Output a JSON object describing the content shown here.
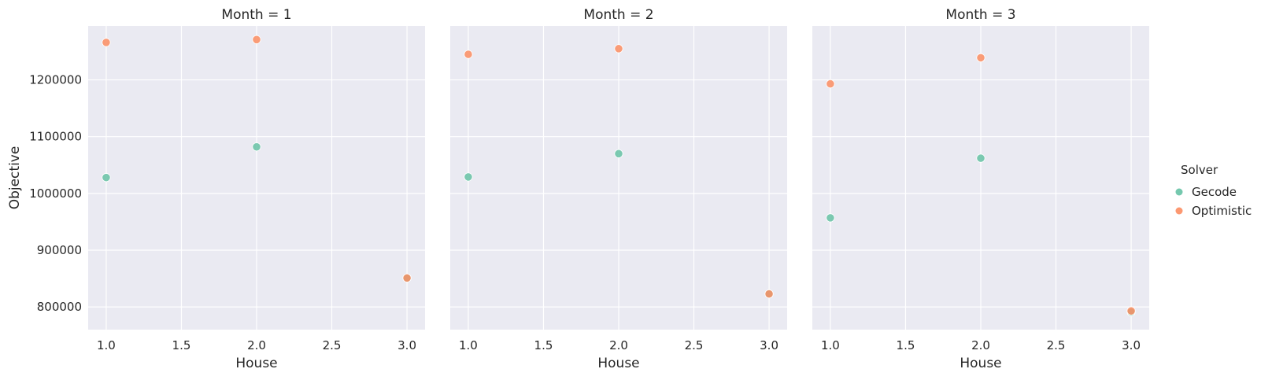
{
  "chart_data": {
    "type": "scatter",
    "facet_variable": "Month",
    "hue_variable": "Solver",
    "xlabel": "House",
    "ylabel": "Objective",
    "xlim": [
      0.88,
      3.12
    ],
    "ylim": [
      760000,
      1295000
    ],
    "xticks": [
      1.0,
      1.5,
      2.0,
      2.5,
      3.0
    ],
    "xtick_labels": [
      "1.0",
      "1.5",
      "2.0",
      "2.5",
      "3.0"
    ],
    "yticks": [
      800000,
      900000,
      1000000,
      1100000,
      1200000
    ],
    "ytick_labels": [
      "800000",
      "900000",
      "1000000",
      "1100000",
      "1200000"
    ],
    "grid": true,
    "legend": {
      "title": "Solver",
      "position": "right",
      "entries": [
        {
          "name": "Gecode",
          "color": "#66c2a5"
        },
        {
          "name": "Optimistic",
          "color": "#fc8d62"
        }
      ]
    },
    "panels": [
      {
        "title": "Month = 1",
        "series": [
          {
            "name": "Gecode",
            "x": [
              1.0,
              2.0,
              3.0
            ],
            "y": [
              1028000,
              1082000,
              851000
            ]
          },
          {
            "name": "Optimistic",
            "x": [
              1.0,
              2.0,
              3.0
            ],
            "y": [
              1266000,
              1271000,
              851000
            ]
          }
        ]
      },
      {
        "title": "Month = 2",
        "series": [
          {
            "name": "Gecode",
            "x": [
              1.0,
              2.0,
              3.0
            ],
            "y": [
              1029000,
              1070000,
              823000
            ]
          },
          {
            "name": "Optimistic",
            "x": [
              1.0,
              2.0,
              3.0
            ],
            "y": [
              1245000,
              1255000,
              823000
            ]
          }
        ]
      },
      {
        "title": "Month = 3",
        "series": [
          {
            "name": "Gecode",
            "x": [
              1.0,
              2.0,
              3.0
            ],
            "y": [
              957000,
              1062000,
              791000
            ]
          },
          {
            "name": "Optimistic",
            "x": [
              1.0,
              2.0,
              3.0
            ],
            "y": [
              1193000,
              1239000,
              793000
            ]
          }
        ]
      }
    ]
  }
}
